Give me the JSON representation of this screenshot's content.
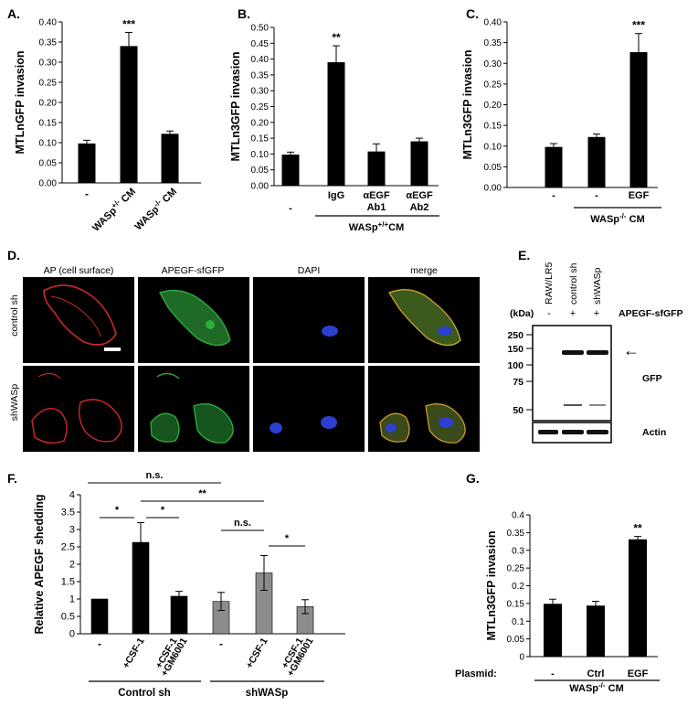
{
  "figure": {
    "panels": {
      "A": {
        "letter": "A."
      },
      "B": {
        "letter": "B."
      },
      "C": {
        "letter": "C."
      },
      "D": {
        "letter": "D."
      },
      "E": {
        "letter": "E."
      },
      "F": {
        "letter": "F."
      },
      "G": {
        "letter": "G."
      }
    },
    "micrograph": {
      "columns": [
        "AP (cell surface)",
        "APEGF-sfGFP",
        "DAPI",
        "merge"
      ],
      "rows": [
        "control sh",
        "shWASp"
      ],
      "colors": {
        "ap": "#d2262a",
        "gfp": "#2fae3a",
        "dapi": "#2b3fd0"
      }
    },
    "western": {
      "lanes": [
        "RAW/LR5",
        "control sh",
        "shWASp"
      ],
      "kda_label": "(kDa)",
      "construct_label": "APEGF-sfGFP",
      "construct_signs": [
        "-",
        "+",
        "+"
      ],
      "markers": [
        "250",
        "150",
        "100",
        "75",
        "50"
      ],
      "band_labels": [
        "GFP",
        "Actin"
      ],
      "arrow": "←"
    }
  },
  "chart_data": [
    {
      "panel": "A",
      "type": "bar",
      "ylabel": "MTLnGFP invasion",
      "ylim": [
        0,
        0.4
      ],
      "ticks": [
        "0.00",
        "0.05",
        "0.10",
        "0.15",
        "0.20",
        "0.25",
        "0.30",
        "0.35",
        "0.40"
      ],
      "tick_values": [
        0,
        0.05,
        0.1,
        0.15,
        0.2,
        0.25,
        0.3,
        0.35,
        0.4
      ],
      "categories": [
        "-",
        "WASp+/- CM",
        "WASp-/- CM"
      ],
      "values": [
        0.098,
        0.34,
        0.122
      ],
      "errors": [
        0.008,
        0.034,
        0.007
      ],
      "significance": [
        "",
        "***",
        ""
      ],
      "bar_color": "#000000"
    },
    {
      "panel": "B",
      "type": "bar",
      "ylabel": "MTLn3GFP invasion",
      "ylim": [
        0,
        0.5
      ],
      "ticks": [
        "0.00",
        "0.05",
        "0.10",
        "0.15",
        "0.20",
        "0.25",
        "0.30",
        "0.35",
        "0.40",
        "0.45",
        "0.50"
      ],
      "tick_values": [
        0,
        0.05,
        0.1,
        0.15,
        0.2,
        0.25,
        0.3,
        0.35,
        0.4,
        0.45,
        0.5
      ],
      "categories": [
        "-",
        "IgG",
        "αEGF Ab1",
        "αEGF Ab2"
      ],
      "values": [
        0.098,
        0.39,
        0.108,
        0.14
      ],
      "errors": [
        0.008,
        0.052,
        0.024,
        0.01
      ],
      "significance": [
        "",
        "**",
        "",
        ""
      ],
      "group_label": "WASp+/+CM",
      "bar_color": "#000000"
    },
    {
      "panel": "C",
      "type": "bar",
      "ylabel": "MTLn3GFP invasion",
      "ylim": [
        0,
        0.4
      ],
      "ticks": [
        "0.00",
        "0.05",
        "0.10",
        "0.15",
        "0.20",
        "0.25",
        "0.30",
        "0.35",
        "0.40"
      ],
      "tick_values": [
        0,
        0.05,
        0.1,
        0.15,
        0.2,
        0.25,
        0.3,
        0.35,
        0.4
      ],
      "categories": [
        "-",
        "-",
        "EGF"
      ],
      "values": [
        0.098,
        0.122,
        0.327
      ],
      "errors": [
        0.008,
        0.007,
        0.045
      ],
      "significance": [
        "",
        "",
        "***"
      ],
      "group_label": "WASp-/- CM",
      "bar_color": "#000000"
    },
    {
      "panel": "F",
      "type": "bar",
      "ylabel": "Relative APEGF shedding",
      "ylim": [
        0,
        4
      ],
      "ticks": [
        "0",
        "0.5",
        "1",
        "1.5",
        "2",
        "2.5",
        "3",
        "3.5",
        "4"
      ],
      "tick_values": [
        0,
        0.5,
        1,
        1.5,
        2,
        2.5,
        3,
        3.5,
        4
      ],
      "categories": [
        "-",
        "+CSF-1",
        "+CSF-1 +GM6001",
        "-",
        "+CSF-1",
        "+CSF-1 +GM6001"
      ],
      "values": [
        1.0,
        2.63,
        1.08,
        0.93,
        1.75,
        0.78
      ],
      "errors": [
        0,
        0.57,
        0.14,
        0.26,
        0.5,
        0.2
      ],
      "colors": [
        "#000000",
        "#000000",
        "#000000",
        "#8c8c8c",
        "#8c8c8c",
        "#8c8c8c"
      ],
      "groups": [
        "Control sh",
        "shWASp"
      ],
      "comparisons": [
        "*",
        "*",
        "n.s.",
        "**",
        "n.s.",
        "*"
      ]
    },
    {
      "panel": "G",
      "type": "bar",
      "ylabel": "MTLn3GFP invasion",
      "ylim": [
        0,
        0.4
      ],
      "ticks": [
        "0",
        "0.05",
        "0.1",
        "0.15",
        "0.2",
        "0.25",
        "0.3",
        "0.35",
        "0.4"
      ],
      "tick_values": [
        0,
        0.05,
        0.1,
        0.15,
        0.2,
        0.25,
        0.3,
        0.35,
        0.4
      ],
      "categories": [
        "-",
        "Ctrl",
        "EGF"
      ],
      "values": [
        0.149,
        0.144,
        0.331
      ],
      "errors": [
        0.013,
        0.012,
        0.008
      ],
      "significance": [
        "",
        "",
        "**"
      ],
      "row_label": "Plasmid:",
      "group_label": "WASp-/- CM",
      "bar_color": "#000000"
    }
  ]
}
